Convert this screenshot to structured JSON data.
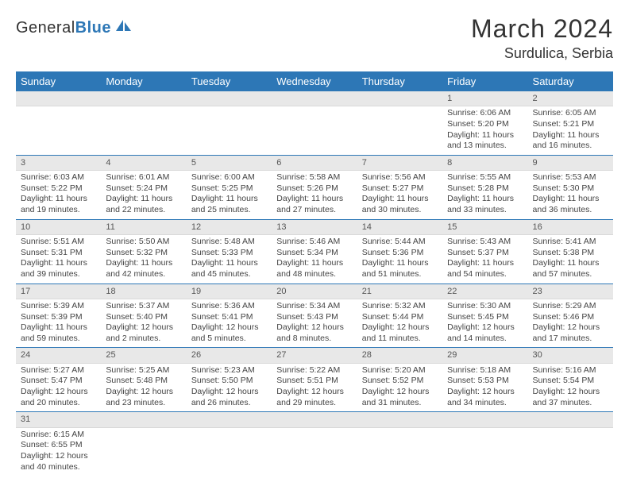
{
  "brand": {
    "part1": "General",
    "part2": "Blue"
  },
  "title": "March 2024",
  "location": "Surdulica, Serbia",
  "colors": {
    "header_bg": "#2d77b6",
    "header_text": "#ffffff",
    "grid_line": "#2d77b6",
    "daybar_bg": "#e8e8e8"
  },
  "dayNames": [
    "Sunday",
    "Monday",
    "Tuesday",
    "Wednesday",
    "Thursday",
    "Friday",
    "Saturday"
  ],
  "weeks": [
    [
      null,
      null,
      null,
      null,
      null,
      {
        "n": "1",
        "sr": "Sunrise: 6:06 AM",
        "ss": "Sunset: 5:20 PM",
        "dl": "Daylight: 11 hours and 13 minutes."
      },
      {
        "n": "2",
        "sr": "Sunrise: 6:05 AM",
        "ss": "Sunset: 5:21 PM",
        "dl": "Daylight: 11 hours and 16 minutes."
      }
    ],
    [
      {
        "n": "3",
        "sr": "Sunrise: 6:03 AM",
        "ss": "Sunset: 5:22 PM",
        "dl": "Daylight: 11 hours and 19 minutes."
      },
      {
        "n": "4",
        "sr": "Sunrise: 6:01 AM",
        "ss": "Sunset: 5:24 PM",
        "dl": "Daylight: 11 hours and 22 minutes."
      },
      {
        "n": "5",
        "sr": "Sunrise: 6:00 AM",
        "ss": "Sunset: 5:25 PM",
        "dl": "Daylight: 11 hours and 25 minutes."
      },
      {
        "n": "6",
        "sr": "Sunrise: 5:58 AM",
        "ss": "Sunset: 5:26 PM",
        "dl": "Daylight: 11 hours and 27 minutes."
      },
      {
        "n": "7",
        "sr": "Sunrise: 5:56 AM",
        "ss": "Sunset: 5:27 PM",
        "dl": "Daylight: 11 hours and 30 minutes."
      },
      {
        "n": "8",
        "sr": "Sunrise: 5:55 AM",
        "ss": "Sunset: 5:28 PM",
        "dl": "Daylight: 11 hours and 33 minutes."
      },
      {
        "n": "9",
        "sr": "Sunrise: 5:53 AM",
        "ss": "Sunset: 5:30 PM",
        "dl": "Daylight: 11 hours and 36 minutes."
      }
    ],
    [
      {
        "n": "10",
        "sr": "Sunrise: 5:51 AM",
        "ss": "Sunset: 5:31 PM",
        "dl": "Daylight: 11 hours and 39 minutes."
      },
      {
        "n": "11",
        "sr": "Sunrise: 5:50 AM",
        "ss": "Sunset: 5:32 PM",
        "dl": "Daylight: 11 hours and 42 minutes."
      },
      {
        "n": "12",
        "sr": "Sunrise: 5:48 AM",
        "ss": "Sunset: 5:33 PM",
        "dl": "Daylight: 11 hours and 45 minutes."
      },
      {
        "n": "13",
        "sr": "Sunrise: 5:46 AM",
        "ss": "Sunset: 5:34 PM",
        "dl": "Daylight: 11 hours and 48 minutes."
      },
      {
        "n": "14",
        "sr": "Sunrise: 5:44 AM",
        "ss": "Sunset: 5:36 PM",
        "dl": "Daylight: 11 hours and 51 minutes."
      },
      {
        "n": "15",
        "sr": "Sunrise: 5:43 AM",
        "ss": "Sunset: 5:37 PM",
        "dl": "Daylight: 11 hours and 54 minutes."
      },
      {
        "n": "16",
        "sr": "Sunrise: 5:41 AM",
        "ss": "Sunset: 5:38 PM",
        "dl": "Daylight: 11 hours and 57 minutes."
      }
    ],
    [
      {
        "n": "17",
        "sr": "Sunrise: 5:39 AM",
        "ss": "Sunset: 5:39 PM",
        "dl": "Daylight: 11 hours and 59 minutes."
      },
      {
        "n": "18",
        "sr": "Sunrise: 5:37 AM",
        "ss": "Sunset: 5:40 PM",
        "dl": "Daylight: 12 hours and 2 minutes."
      },
      {
        "n": "19",
        "sr": "Sunrise: 5:36 AM",
        "ss": "Sunset: 5:41 PM",
        "dl": "Daylight: 12 hours and 5 minutes."
      },
      {
        "n": "20",
        "sr": "Sunrise: 5:34 AM",
        "ss": "Sunset: 5:43 PM",
        "dl": "Daylight: 12 hours and 8 minutes."
      },
      {
        "n": "21",
        "sr": "Sunrise: 5:32 AM",
        "ss": "Sunset: 5:44 PM",
        "dl": "Daylight: 12 hours and 11 minutes."
      },
      {
        "n": "22",
        "sr": "Sunrise: 5:30 AM",
        "ss": "Sunset: 5:45 PM",
        "dl": "Daylight: 12 hours and 14 minutes."
      },
      {
        "n": "23",
        "sr": "Sunrise: 5:29 AM",
        "ss": "Sunset: 5:46 PM",
        "dl": "Daylight: 12 hours and 17 minutes."
      }
    ],
    [
      {
        "n": "24",
        "sr": "Sunrise: 5:27 AM",
        "ss": "Sunset: 5:47 PM",
        "dl": "Daylight: 12 hours and 20 minutes."
      },
      {
        "n": "25",
        "sr": "Sunrise: 5:25 AM",
        "ss": "Sunset: 5:48 PM",
        "dl": "Daylight: 12 hours and 23 minutes."
      },
      {
        "n": "26",
        "sr": "Sunrise: 5:23 AM",
        "ss": "Sunset: 5:50 PM",
        "dl": "Daylight: 12 hours and 26 minutes."
      },
      {
        "n": "27",
        "sr": "Sunrise: 5:22 AM",
        "ss": "Sunset: 5:51 PM",
        "dl": "Daylight: 12 hours and 29 minutes."
      },
      {
        "n": "28",
        "sr": "Sunrise: 5:20 AM",
        "ss": "Sunset: 5:52 PM",
        "dl": "Daylight: 12 hours and 31 minutes."
      },
      {
        "n": "29",
        "sr": "Sunrise: 5:18 AM",
        "ss": "Sunset: 5:53 PM",
        "dl": "Daylight: 12 hours and 34 minutes."
      },
      {
        "n": "30",
        "sr": "Sunrise: 5:16 AM",
        "ss": "Sunset: 5:54 PM",
        "dl": "Daylight: 12 hours and 37 minutes."
      }
    ],
    [
      {
        "n": "31",
        "sr": "Sunrise: 6:15 AM",
        "ss": "Sunset: 6:55 PM",
        "dl": "Daylight: 12 hours and 40 minutes."
      },
      null,
      null,
      null,
      null,
      null,
      null
    ]
  ]
}
